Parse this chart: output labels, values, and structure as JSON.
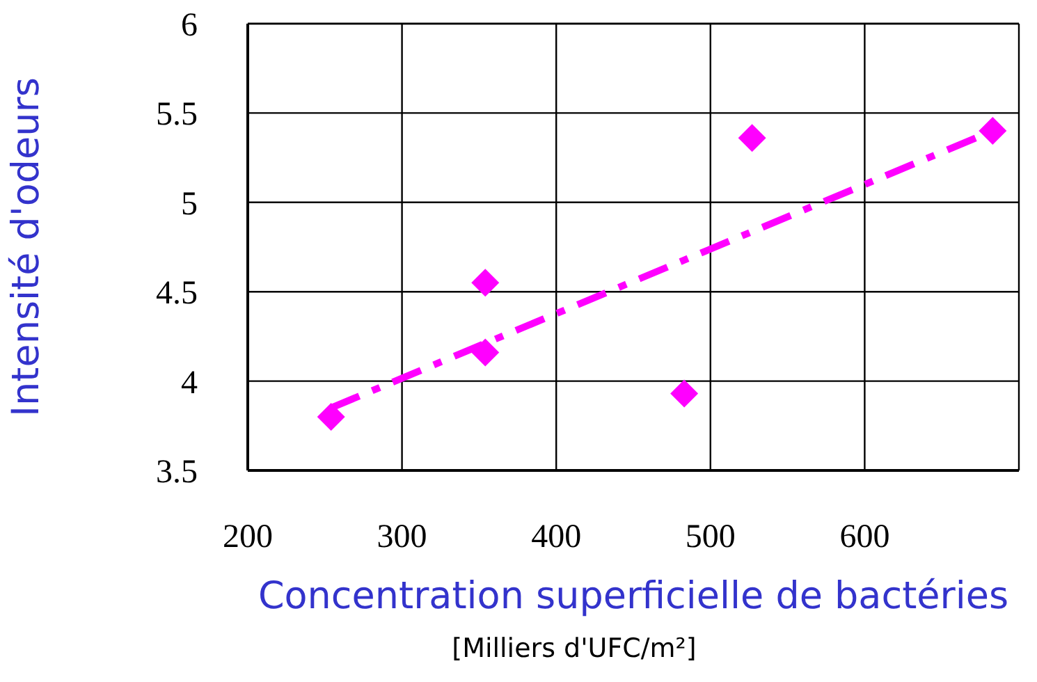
{
  "chart_data": {
    "type": "scatter",
    "xlabel": "Concentration superficielle de bactéries",
    "ylabel": "Intensité d'odeurs",
    "annotations": [
      "[Milliers d'UFC/m²]"
    ],
    "x": [
      254,
      354,
      354,
      483,
      527,
      683
    ],
    "series": [
      {
        "color": "#ff00ff",
        "values": [
          3.8,
          4.55,
          4.16,
          3.93,
          5.36,
          5.4
        ],
        "marker": "diamond"
      },
      {
        "type": "line",
        "color": "#ff00ff",
        "x": [
          254,
          683
        ],
        "values": [
          3.85,
          5.4
        ],
        "line_style": "dashed",
        "marker": "none"
      }
    ],
    "xlim": [
      200,
      700
    ],
    "xticks": [
      200,
      300,
      400,
      500,
      600
    ],
    "ylim": [
      3.5,
      6
    ],
    "yticks": [
      3.5,
      4,
      4.5,
      5,
      5.5,
      6
    ],
    "grid": true,
    "legend": false
  }
}
